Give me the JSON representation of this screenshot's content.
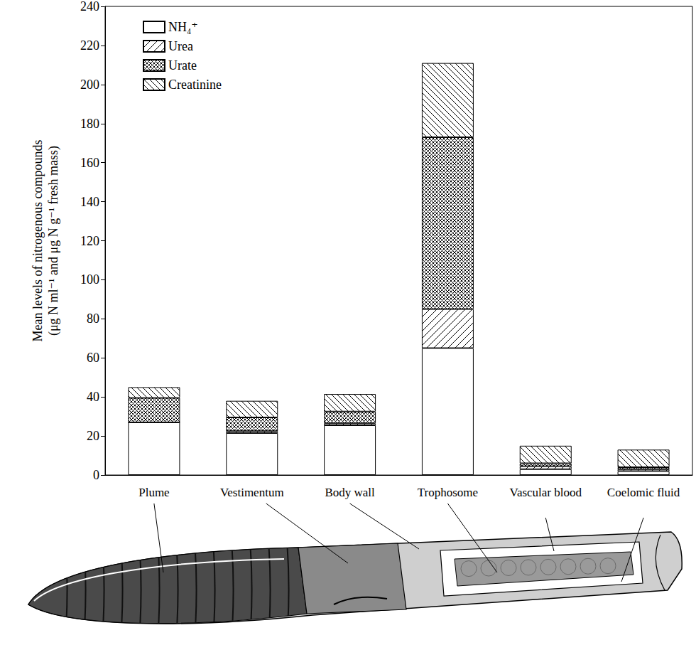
{
  "chart_data": {
    "type": "bar",
    "y_label": "Mean levels of nitrogenous compounds (μg N ml⁻¹ and μg N g⁻¹ fresh mass)",
    "categories": [
      "Plume",
      "Vestimentum",
      "Body wall",
      "Trophosome",
      "Vascular blood",
      "Coelomic fluid"
    ],
    "series": [
      {
        "name": "NH₄⁺",
        "color": "#ffffff",
        "values": [
          27,
          21.5,
          25.5,
          65,
          3,
          2
        ]
      },
      {
        "name": "Urea",
        "color": "#000000",
        "values": [
          0,
          1,
          1,
          20,
          1.5,
          1
        ]
      },
      {
        "name": "Urate",
        "color": "#000000",
        "values": [
          12.5,
          7,
          6,
          88,
          1.5,
          1
        ]
      },
      {
        "name": "Creatinine",
        "color": "#000000",
        "values": [
          5.5,
          8.5,
          9,
          38,
          9,
          9
        ]
      }
    ],
    "ylim": [
      0,
      240
    ],
    "yticks": [
      0,
      20,
      40,
      60,
      80,
      100,
      120,
      140,
      160,
      180,
      200,
      220,
      240
    ],
    "stacked": true,
    "legend": "top-left",
    "grid": false
  }
}
